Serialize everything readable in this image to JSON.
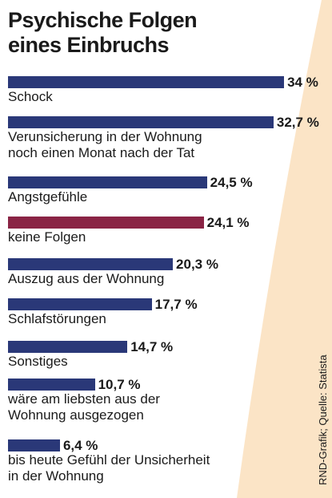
{
  "chart_data": {
    "type": "bar",
    "orientation": "horizontal",
    "title": "Psychische Folgen\neines Einbruchs",
    "categories": [
      "Schock",
      "Verunsicherung in der Wohnung\nnoch einen Monat nach der Tat",
      "Angstgefühle",
      "keine Folgen",
      "Auszug aus der Wohnung",
      "Schlafstörungen",
      "Sonstiges",
      "wäre am liebsten aus der\nWohnung ausgezogen",
      "bis heute Gefühl der Unsicherheit\nin der Wohnung"
    ],
    "values": [
      34,
      32.7,
      24.5,
      24.1,
      20.3,
      17.7,
      14.7,
      10.7,
      6.4
    ],
    "value_labels": [
      "34 %",
      "32,7 %",
      "24,5 %",
      "24,1 %",
      "20,3 %",
      "17,7 %",
      "14,7 %",
      "10,7 %",
      "6,4 %"
    ],
    "colors": [
      "#2a3878",
      "#2a3878",
      "#2a3878",
      "#8a2445",
      "#2a3878",
      "#2a3878",
      "#2a3878",
      "#2a3878",
      "#2a3878"
    ],
    "source": "RND-Grafik; Quelle: Statista"
  }
}
